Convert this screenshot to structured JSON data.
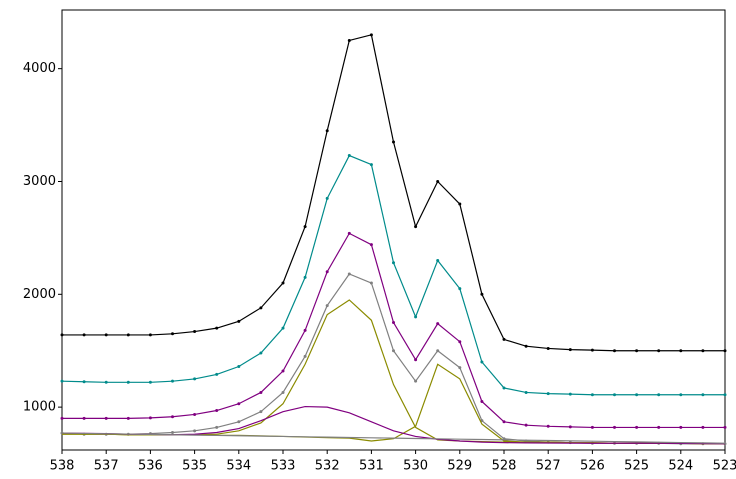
{
  "chart_data": {
    "type": "line",
    "x": [
      538,
      537.5,
      537,
      536.5,
      536,
      535.5,
      535,
      534.5,
      534,
      533.5,
      533,
      532.5,
      532,
      531.5,
      531,
      530.5,
      530,
      529.5,
      529,
      528.5,
      528,
      527.5,
      527,
      526.5,
      526,
      525.5,
      525,
      524.5,
      524,
      523.5,
      523
    ],
    "xlim": [
      538,
      523
    ],
    "xticks": [
      538,
      537,
      536,
      535,
      534,
      533,
      532,
      531,
      530,
      529,
      528,
      527,
      526,
      525,
      524,
      523
    ],
    "ylim": [
      620,
      4520
    ],
    "yticks": [
      1000,
      2000,
      3000,
      4000
    ],
    "series": [
      {
        "color": "#000000",
        "markers": true,
        "values": [
          1640,
          1640,
          1640,
          1640,
          1640,
          1650,
          1670,
          1700,
          1760,
          1880,
          2100,
          2600,
          3450,
          4250,
          4300,
          3350,
          2600,
          3000,
          2800,
          2000,
          1600,
          1540,
          1520,
          1510,
          1505,
          1500,
          1500,
          1500,
          1500,
          1500,
          1500
        ]
      },
      {
        "color": "#008b8b",
        "markers": true,
        "values": [
          1230,
          1225,
          1220,
          1220,
          1220,
          1230,
          1250,
          1290,
          1360,
          1480,
          1700,
          2150,
          2850,
          3230,
          3150,
          2280,
          1800,
          2300,
          2050,
          1400,
          1170,
          1130,
          1120,
          1115,
          1110,
          1110,
          1110,
          1110,
          1110,
          1110,
          1110
        ]
      },
      {
        "color": "#800080",
        "markers": true,
        "values": [
          900,
          900,
          900,
          900,
          905,
          915,
          935,
          970,
          1030,
          1130,
          1320,
          1680,
          2200,
          2540,
          2440,
          1750,
          1420,
          1740,
          1580,
          1050,
          870,
          840,
          830,
          825,
          820,
          820,
          820,
          820,
          820,
          820,
          820
        ]
      },
      {
        "color": "#808080",
        "markers": true,
        "values": [
          770,
          760,
          760,
          760,
          765,
          775,
          790,
          820,
          870,
          960,
          1130,
          1450,
          1900,
          2180,
          2100,
          1500,
          1230,
          1500,
          1350,
          880,
          720,
          700,
          690,
          685,
          680,
          680,
          680,
          680,
          675,
          675,
          675
        ]
      },
      {
        "color": "#8b8b00",
        "markers": false,
        "values": [
          760,
          760,
          760,
          755,
          755,
          755,
          755,
          760,
          790,
          860,
          1030,
          1380,
          1820,
          1950,
          1770,
          1200,
          820,
          710,
          700,
          695,
          690,
          690,
          690,
          685,
          685,
          680,
          680,
          680,
          680,
          675,
          675
        ]
      },
      {
        "color": "#8b8b00",
        "markers": false,
        "values": [
          760,
          760,
          760,
          755,
          755,
          755,
          755,
          750,
          750,
          745,
          740,
          735,
          730,
          725,
          700,
          720,
          830,
          1380,
          1250,
          850,
          700,
          690,
          690,
          685,
          685,
          680,
          680,
          680,
          680,
          675,
          675
        ]
      },
      {
        "color": "#800080",
        "markers": false,
        "values": [
          770,
          768,
          765,
          760,
          758,
          755,
          760,
          775,
          810,
          880,
          960,
          1005,
          1000,
          950,
          870,
          790,
          740,
          715,
          700,
          690,
          685,
          683,
          682,
          681,
          680,
          680,
          680,
          680,
          678,
          676,
          675
        ]
      },
      {
        "color": "#808080",
        "markers": false,
        "values": [
          770,
          767,
          764,
          761,
          758,
          755,
          752,
          749,
          746,
          743,
          740,
          737,
          734,
          731,
          728,
          725,
          722,
          719,
          716,
          713,
          710,
          707,
          704,
          701,
          698,
          695,
          692,
          689,
          686,
          683,
          680
        ]
      }
    ]
  }
}
